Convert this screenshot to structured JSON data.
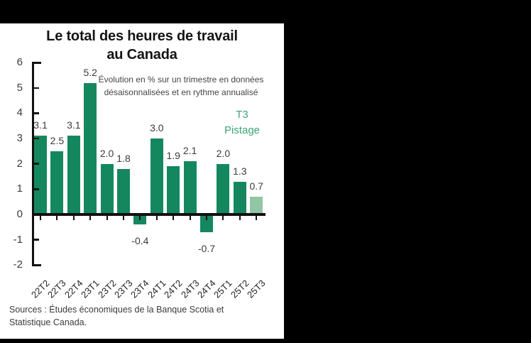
{
  "canvas": {
    "background": "#000000",
    "panel_background": "#ffffff"
  },
  "chart_data": {
    "type": "bar",
    "title_line1": "Le total des heures de travail",
    "title_line2": "au Canada",
    "subtitle_line1": "Évolution en % sur un trimestre en données",
    "subtitle_line2": "désaisonnalisées et en rythme annualisé",
    "categories": [
      "22T2",
      "22T3",
      "22T4",
      "23T1",
      "23T2",
      "23T3",
      "23T4",
      "24T1",
      "24T2",
      "24T3",
      "24T4",
      "25T1",
      "25T2",
      "25T3"
    ],
    "values": [
      3.1,
      2.5,
      3.1,
      5.2,
      2.0,
      1.8,
      -0.4,
      3.0,
      1.9,
      2.1,
      -0.7,
      2.0,
      1.3,
      0.7
    ],
    "value_labels": [
      "3.1",
      "2.5",
      "3.1",
      "5.2",
      "2.0",
      "1.8",
      "-0.4",
      "3.0",
      "1.9",
      "2.1",
      "-0.7",
      "2.0",
      "1.3",
      "0.7"
    ],
    "highlight_index": 13,
    "tracking_label_line1": "T3",
    "tracking_label_line2": "Pistage",
    "xlabel": "",
    "ylabel": "",
    "ylim": [
      -2,
      6
    ],
    "yticks": [
      {
        "value": 6,
        "label": "6"
      },
      {
        "value": 5,
        "label": "5"
      },
      {
        "value": 4,
        "label": "4"
      },
      {
        "value": 3,
        "label": "3"
      },
      {
        "value": 2,
        "label": "2"
      },
      {
        "value": 1,
        "label": "1"
      },
      {
        "value": 0,
        "label": "0"
      },
      {
        "value": -1,
        "label": "-1"
      },
      {
        "value": -2,
        "label": "-2"
      }
    ],
    "grid": false,
    "legend": "none",
    "source_line1": "Sources : Études économiques de la Banque Scotia et",
    "source_line2": "Statistique Canada.",
    "colors": {
      "bar": "#15875f",
      "bar_highlight": "#92c5a4",
      "accent_text": "#3aa578",
      "axis": "#111111",
      "text": "#141414"
    }
  }
}
